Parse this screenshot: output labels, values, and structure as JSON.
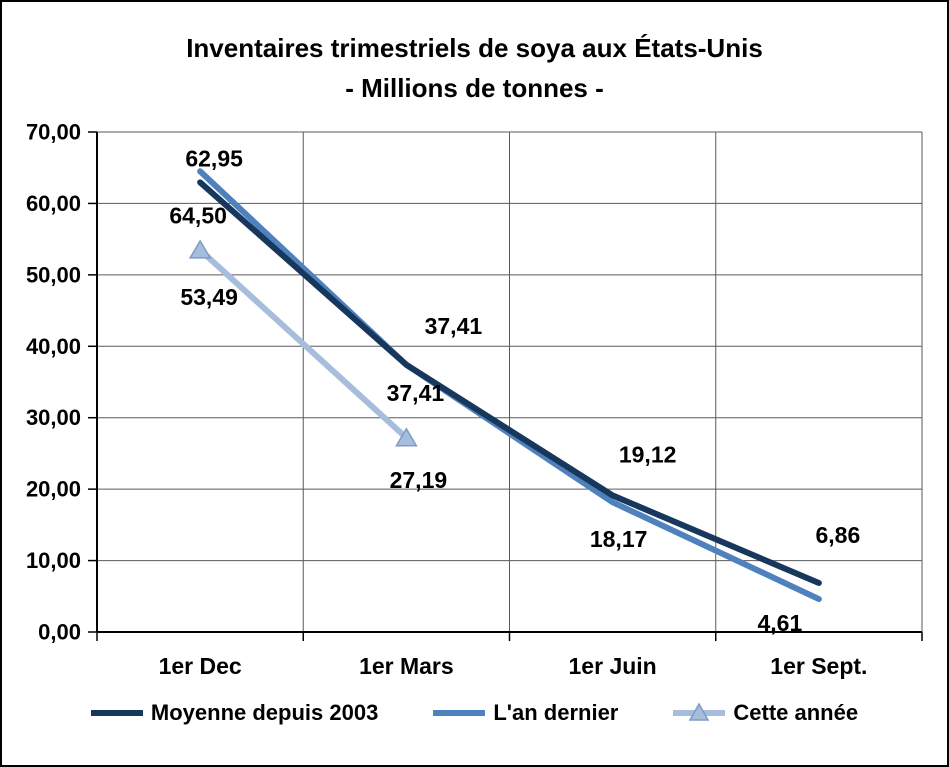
{
  "chart_data": {
    "type": "line",
    "title": "Inventaires trimestriels de soya aux États-Unis",
    "subtitle": "- Millions de tonnes -",
    "categories": [
      "1er Dec",
      "1er Mars",
      "1er Juin",
      "1er Sept."
    ],
    "series": [
      {
        "name": "Moyenne depuis 2003",
        "color": "#17375D",
        "marker": "none",
        "values": [
          62.95,
          37.41,
          19.12,
          6.86
        ],
        "labels": [
          "62,95",
          "37,41",
          "19,12",
          "6,86"
        ]
      },
      {
        "name": "L'an dernier",
        "color": "#4F81BD",
        "marker": "none",
        "values": [
          64.5,
          37.41,
          18.17,
          4.61
        ],
        "labels": [
          "64,50",
          "37,41",
          "18,17",
          "4,61"
        ]
      },
      {
        "name": "Cette année",
        "color": "#A6BDDC",
        "marker": "triangle",
        "marker_stroke": "#7E9BC6",
        "values": [
          53.49,
          27.19
        ],
        "labels": [
          "53,49",
          "27,19"
        ]
      }
    ],
    "ylim": [
      0,
      70
    ],
    "ytick_step": 10,
    "ytick_labels": [
      "0,00",
      "10,00",
      "20,00",
      "30,00",
      "40,00",
      "50,00",
      "60,00",
      "70,00"
    ],
    "grid": true,
    "legend_position": "bottom",
    "axis_color": "#000000",
    "grid_color": "#5a5a5a"
  }
}
